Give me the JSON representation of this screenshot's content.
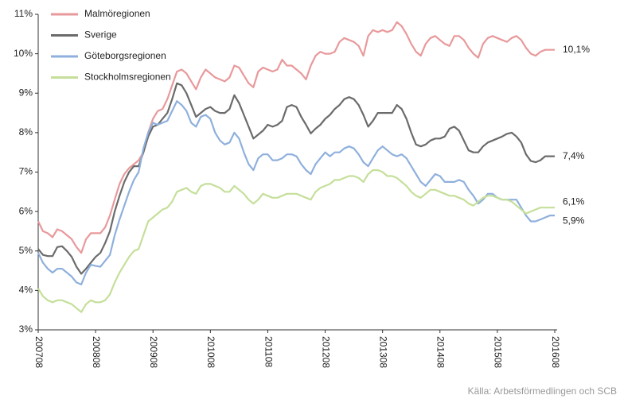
{
  "chart_data": {
    "type": "line",
    "source": "Källa: Arbetsförmedlingen och SCB",
    "categories": [
      "200708",
      null,
      null,
      null,
      null,
      null,
      null,
      null,
      null,
      null,
      null,
      null,
      "200808",
      null,
      null,
      null,
      null,
      null,
      null,
      null,
      null,
      null,
      null,
      null,
      "200908",
      null,
      null,
      null,
      null,
      null,
      null,
      null,
      null,
      null,
      null,
      null,
      "201008",
      null,
      null,
      null,
      null,
      null,
      null,
      null,
      null,
      null,
      null,
      null,
      "201108",
      null,
      null,
      null,
      null,
      null,
      null,
      null,
      null,
      null,
      null,
      null,
      "201208",
      null,
      null,
      null,
      null,
      null,
      null,
      null,
      null,
      null,
      null,
      null,
      "201308",
      null,
      null,
      null,
      null,
      null,
      null,
      null,
      null,
      null,
      null,
      null,
      "201408",
      null,
      null,
      null,
      null,
      null,
      null,
      null,
      null,
      null,
      null,
      null,
      "201508",
      null,
      null,
      null,
      null,
      null,
      null,
      null,
      null,
      null,
      null,
      null,
      "201608"
    ],
    "ylim": [
      3,
      11
    ],
    "yticks": [
      {
        "value": 3,
        "label": "3%"
      },
      {
        "value": 4,
        "label": "4%"
      },
      {
        "value": 5,
        "label": "5%"
      },
      {
        "value": 6,
        "label": "6%"
      },
      {
        "value": 7,
        "label": "7%"
      },
      {
        "value": 8,
        "label": "8%"
      },
      {
        "value": 9,
        "label": "9%"
      },
      {
        "value": 10,
        "label": "10%"
      },
      {
        "value": 11,
        "label": "11%"
      }
    ],
    "grid": false,
    "legend": "top-left",
    "series": [
      {
        "name": "Malmöregionen",
        "color": "#e8999b",
        "end_label": "10,1%",
        "values": [
          5.75,
          5.5,
          5.45,
          5.35,
          5.55,
          5.5,
          5.4,
          5.3,
          5.1,
          4.95,
          5.3,
          5.45,
          5.45,
          5.45,
          5.6,
          5.9,
          6.3,
          6.7,
          6.95,
          7.1,
          7.2,
          7.3,
          7.5,
          8.0,
          8.35,
          8.55,
          8.6,
          8.85,
          9.2,
          9.55,
          9.6,
          9.5,
          9.3,
          9.1,
          9.4,
          9.6,
          9.5,
          9.4,
          9.35,
          9.3,
          9.4,
          9.7,
          9.65,
          9.45,
          9.25,
          9.15,
          9.55,
          9.65,
          9.6,
          9.55,
          9.6,
          9.85,
          9.7,
          9.7,
          9.6,
          9.5,
          9.35,
          9.7,
          9.95,
          10.05,
          10.0,
          10.0,
          10.05,
          10.3,
          10.4,
          10.35,
          10.3,
          10.2,
          9.95,
          10.45,
          10.6,
          10.55,
          10.6,
          10.55,
          10.6,
          10.8,
          10.7,
          10.5,
          10.25,
          10.05,
          9.95,
          10.25,
          10.4,
          10.45,
          10.35,
          10.25,
          10.2,
          10.45,
          10.45,
          10.35,
          10.15,
          10.0,
          9.9,
          10.25,
          10.4,
          10.45,
          10.4,
          10.35,
          10.3,
          10.4,
          10.45,
          10.35,
          10.15,
          10.0,
          9.95,
          10.05,
          10.1,
          10.1,
          10.1
        ]
      },
      {
        "name": "Sverige",
        "color": "#6b6b6b",
        "end_label": "7,4%",
        "values": [
          5.05,
          4.9,
          4.87,
          4.87,
          5.1,
          5.12,
          5.0,
          4.85,
          4.6,
          4.42,
          4.55,
          4.7,
          4.85,
          4.95,
          5.2,
          5.5,
          6.0,
          6.4,
          6.75,
          7.0,
          7.15,
          7.15,
          7.5,
          7.9,
          8.15,
          8.2,
          8.35,
          8.5,
          8.85,
          9.25,
          9.2,
          9.0,
          8.7,
          8.4,
          8.5,
          8.6,
          8.65,
          8.55,
          8.5,
          8.5,
          8.6,
          8.95,
          8.75,
          8.45,
          8.15,
          7.85,
          7.95,
          8.05,
          8.2,
          8.15,
          8.2,
          8.3,
          8.65,
          8.7,
          8.65,
          8.4,
          8.2,
          7.98,
          8.1,
          8.2,
          8.35,
          8.45,
          8.6,
          8.7,
          8.85,
          8.9,
          8.85,
          8.7,
          8.45,
          8.15,
          8.3,
          8.5,
          8.5,
          8.5,
          8.5,
          8.7,
          8.6,
          8.35,
          8.0,
          7.7,
          7.65,
          7.7,
          7.8,
          7.85,
          7.85,
          7.9,
          8.1,
          8.15,
          8.05,
          7.8,
          7.55,
          7.5,
          7.5,
          7.65,
          7.75,
          7.8,
          7.85,
          7.9,
          7.97,
          8.0,
          7.9,
          7.75,
          7.45,
          7.28,
          7.25,
          7.3,
          7.4,
          7.4,
          7.4
        ]
      },
      {
        "name": "Göteborgsregionen",
        "color": "#8fb0dc",
        "end_label": "5,9%",
        "values": [
          4.95,
          4.7,
          4.55,
          4.45,
          4.55,
          4.55,
          4.45,
          4.35,
          4.2,
          4.15,
          4.45,
          4.65,
          4.62,
          4.6,
          4.75,
          4.9,
          5.4,
          5.8,
          6.15,
          6.5,
          6.8,
          7.0,
          7.6,
          8.0,
          8.25,
          8.2,
          8.25,
          8.3,
          8.55,
          8.8,
          8.7,
          8.55,
          8.25,
          8.15,
          8.4,
          8.45,
          8.35,
          8.0,
          7.8,
          7.7,
          7.75,
          8.0,
          7.85,
          7.5,
          7.2,
          7.05,
          7.35,
          7.45,
          7.45,
          7.3,
          7.3,
          7.35,
          7.45,
          7.45,
          7.4,
          7.2,
          7.05,
          6.95,
          7.2,
          7.35,
          7.5,
          7.4,
          7.5,
          7.5,
          7.6,
          7.65,
          7.6,
          7.45,
          7.25,
          7.15,
          7.35,
          7.55,
          7.65,
          7.55,
          7.45,
          7.4,
          7.45,
          7.35,
          7.15,
          6.95,
          6.75,
          6.65,
          6.8,
          6.95,
          6.9,
          6.75,
          6.75,
          6.75,
          6.8,
          6.75,
          6.55,
          6.4,
          6.2,
          6.3,
          6.45,
          6.45,
          6.35,
          6.3,
          6.3,
          6.3,
          6.3,
          6.1,
          5.9,
          5.75,
          5.75,
          5.8,
          5.85,
          5.9,
          5.9
        ]
      },
      {
        "name": "Stockholmsregionen",
        "color": "#c5df9a",
        "end_label": "6,1%",
        "values": [
          4.05,
          3.85,
          3.75,
          3.7,
          3.75,
          3.75,
          3.7,
          3.65,
          3.55,
          3.45,
          3.65,
          3.75,
          3.7,
          3.7,
          3.75,
          3.9,
          4.2,
          4.45,
          4.65,
          4.85,
          5.0,
          5.05,
          5.4,
          5.75,
          5.85,
          5.95,
          6.05,
          6.1,
          6.25,
          6.5,
          6.55,
          6.6,
          6.5,
          6.45,
          6.65,
          6.7,
          6.7,
          6.65,
          6.6,
          6.5,
          6.5,
          6.65,
          6.55,
          6.45,
          6.3,
          6.2,
          6.3,
          6.45,
          6.4,
          6.35,
          6.35,
          6.4,
          6.45,
          6.45,
          6.45,
          6.4,
          6.35,
          6.3,
          6.5,
          6.6,
          6.65,
          6.7,
          6.8,
          6.8,
          6.85,
          6.9,
          6.9,
          6.85,
          6.75,
          6.95,
          7.05,
          7.05,
          7.0,
          6.9,
          6.9,
          6.85,
          6.75,
          6.65,
          6.5,
          6.4,
          6.35,
          6.45,
          6.55,
          6.55,
          6.5,
          6.45,
          6.4,
          6.4,
          6.35,
          6.3,
          6.2,
          6.15,
          6.25,
          6.35,
          6.4,
          6.4,
          6.35,
          6.3,
          6.3,
          6.25,
          6.15,
          6.05,
          5.95,
          6.0,
          6.05,
          6.1,
          6.1,
          6.1,
          6.1
        ]
      }
    ]
  }
}
